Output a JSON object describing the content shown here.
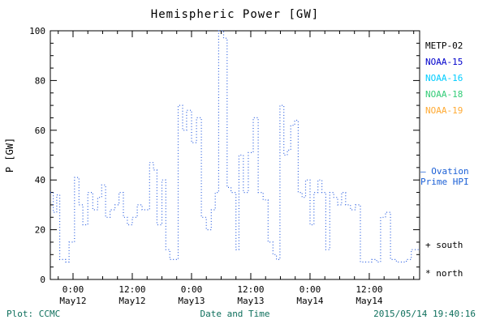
{
  "chart_data": {
    "type": "line",
    "style": "step-post-dotted",
    "title": "Hemispheric Power [GW]",
    "xlabel": "Date and Time",
    "ylabel": "P [GW]",
    "ylim": [
      0,
      100
    ],
    "xlim_hours": [
      -4.6,
      70.2
    ],
    "y_ticks": [
      0,
      20,
      40,
      60,
      80,
      100
    ],
    "x_ticks": [
      {
        "t": 0,
        "time": "0:00",
        "date": "May12"
      },
      {
        "t": 12,
        "time": "12:00",
        "date": "May12"
      },
      {
        "t": 24,
        "time": "0:00",
        "date": "May13"
      },
      {
        "t": 36,
        "time": "12:00",
        "date": "May13"
      },
      {
        "t": 48,
        "time": "0:00",
        "date": "May14"
      },
      {
        "t": 60,
        "time": "12:00",
        "date": "May14"
      }
    ],
    "line_color": "#2b5fe0",
    "grid": false,
    "points": [
      [
        -4.6,
        35
      ],
      [
        -4.0,
        27
      ],
      [
        -3.3,
        34
      ],
      [
        -2.7,
        8
      ],
      [
        -1.5,
        7
      ],
      [
        -0.8,
        15
      ],
      [
        0.3,
        41
      ],
      [
        1.2,
        30
      ],
      [
        2.0,
        22
      ],
      [
        3.0,
        35
      ],
      [
        4.0,
        28
      ],
      [
        5.0,
        33
      ],
      [
        5.8,
        38
      ],
      [
        6.6,
        25
      ],
      [
        7.5,
        28
      ],
      [
        8.5,
        30
      ],
      [
        9.3,
        35
      ],
      [
        10.2,
        25
      ],
      [
        11.0,
        22
      ],
      [
        12.0,
        25
      ],
      [
        13.0,
        30
      ],
      [
        14.0,
        28
      ],
      [
        15.5,
        47
      ],
      [
        16.3,
        44
      ],
      [
        17.0,
        22
      ],
      [
        18.0,
        40
      ],
      [
        18.8,
        12
      ],
      [
        19.6,
        8
      ],
      [
        21.3,
        70
      ],
      [
        22.2,
        60
      ],
      [
        23.0,
        68
      ],
      [
        24.0,
        55
      ],
      [
        25.0,
        65
      ],
      [
        26.0,
        25
      ],
      [
        27.0,
        20
      ],
      [
        28.0,
        28
      ],
      [
        28.8,
        35
      ],
      [
        29.5,
        100
      ],
      [
        30.5,
        97
      ],
      [
        31.2,
        37
      ],
      [
        32.0,
        35
      ],
      [
        33.0,
        12
      ],
      [
        33.6,
        50
      ],
      [
        34.5,
        35
      ],
      [
        35.5,
        51
      ],
      [
        36.5,
        65
      ],
      [
        37.5,
        35
      ],
      [
        38.5,
        32
      ],
      [
        39.5,
        15
      ],
      [
        40.5,
        10
      ],
      [
        41.2,
        8
      ],
      [
        41.9,
        70
      ],
      [
        42.7,
        50
      ],
      [
        43.4,
        52
      ],
      [
        44.1,
        62
      ],
      [
        44.9,
        64
      ],
      [
        45.6,
        35
      ],
      [
        46.4,
        33
      ],
      [
        47.1,
        40
      ],
      [
        48.0,
        22
      ],
      [
        48.8,
        35
      ],
      [
        49.6,
        40
      ],
      [
        50.4,
        35
      ],
      [
        51.2,
        12
      ],
      [
        52.0,
        35
      ],
      [
        52.8,
        33
      ],
      [
        53.6,
        30
      ],
      [
        54.4,
        35
      ],
      [
        55.2,
        30
      ],
      [
        56.2,
        28
      ],
      [
        57.2,
        30
      ],
      [
        58.2,
        7
      ],
      [
        59.5,
        7
      ],
      [
        60.5,
        8
      ],
      [
        61.5,
        7
      ],
      [
        62.3,
        25
      ],
      [
        63.3,
        27
      ],
      [
        64.3,
        8
      ],
      [
        65.5,
        7
      ],
      [
        66.5,
        7
      ],
      [
        67.5,
        8
      ],
      [
        68.5,
        12
      ],
      [
        70.2,
        12
      ]
    ]
  },
  "legend": {
    "satellites": [
      {
        "label": "METP-02",
        "color": "#000000"
      },
      {
        "label": "NOAA-15",
        "color": "#0000cc"
      },
      {
        "label": "NOAA-16",
        "color": "#00ccff"
      },
      {
        "label": "NOAA-18",
        "color": "#33cc77"
      },
      {
        "label": "NOAA-19",
        "color": "#ffaa33"
      }
    ]
  },
  "side": {
    "ovation_line1": "— Ovation",
    "ovation_line2": "Prime HPI",
    "ovation_color": "#1a5fd6",
    "south": "+ south",
    "north": "* north"
  },
  "footer": {
    "left": "Plot: CCMC",
    "center": "Date and Time",
    "right": "2015/05/14 19:40:16",
    "color": "#0e6f5c"
  }
}
